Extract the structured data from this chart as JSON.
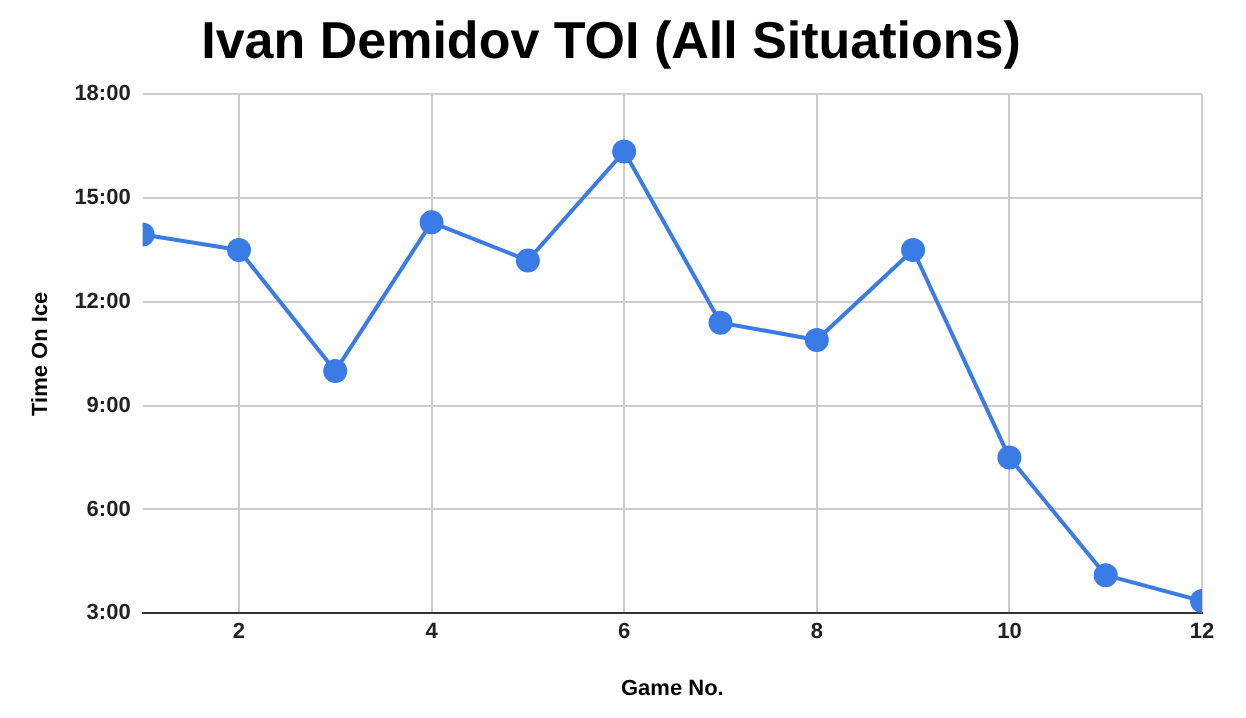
{
  "chart_data": {
    "type": "line",
    "title": "Ivan Demidov TOI (All Situations)",
    "xlabel": "Game No.",
    "ylabel": "Time On Ice",
    "x": [
      1,
      2,
      3,
      4,
      5,
      6,
      7,
      8,
      9,
      10,
      11,
      12
    ],
    "series": [
      {
        "color": "#3a7be6",
        "values": [
          13.95,
          13.5,
          10.0,
          14.3,
          13.2,
          16.35,
          11.4,
          10.9,
          13.5,
          7.5,
          4.1,
          3.35
        ]
      }
    ],
    "xlim": [
      1,
      12
    ],
    "xticks": [
      2,
      4,
      6,
      8,
      10,
      12
    ],
    "ylim": [
      3,
      18
    ],
    "yticks": [
      {
        "value": 3,
        "label": "3:00"
      },
      {
        "value": 6,
        "label": "6:00"
      },
      {
        "value": 9,
        "label": "9:00"
      },
      {
        "value": 12,
        "label": "12:00"
      },
      {
        "value": 15,
        "label": "15:00"
      },
      {
        "value": 18,
        "label": "18:00"
      }
    ],
    "grid": true,
    "legend": false,
    "marker": "circle",
    "line_style": "solid"
  }
}
